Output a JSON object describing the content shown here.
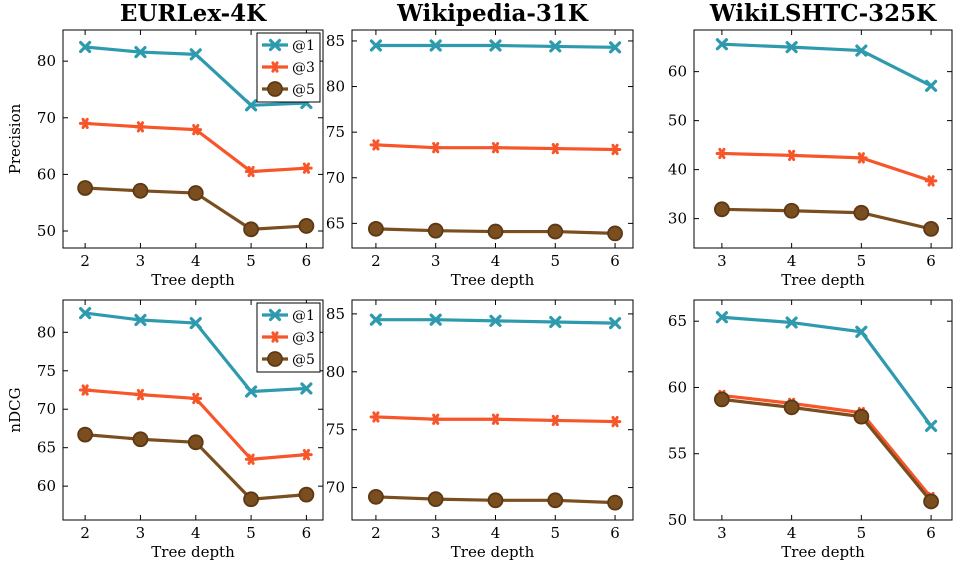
{
  "colors": {
    "@1": "#2e9aae",
    "@3": "#f7562a",
    "@5": "#7a4e1f",
    "@5_stroke": "#5c3814"
  },
  "chart_data": [
    {
      "type": "line",
      "row": 0,
      "col": 0,
      "title": "EURLex-4K",
      "xlabel": "Tree depth",
      "ylabel": "Precision",
      "x": [
        2,
        3,
        4,
        5,
        6
      ],
      "xlim": [
        1.6,
        6.3
      ],
      "ylim": [
        47,
        85.5
      ],
      "yticks": [
        50,
        60,
        70,
        80
      ],
      "legend": "top-right",
      "series": [
        {
          "name": "@1",
          "values": [
            82.5,
            81.6,
            81.2,
            72.2,
            72.6
          ]
        },
        {
          "name": "@3",
          "values": [
            69.0,
            68.4,
            67.9,
            60.5,
            61.1
          ]
        },
        {
          "name": "@5",
          "values": [
            57.6,
            57.1,
            56.7,
            50.3,
            50.9
          ]
        }
      ]
    },
    {
      "type": "line",
      "row": 0,
      "col": 1,
      "title": "Wikipedia-31K",
      "xlabel": "Tree depth",
      "ylabel": "",
      "x": [
        2,
        3,
        4,
        5,
        6
      ],
      "xlim": [
        1.6,
        6.3
      ],
      "ylim": [
        62.3,
        86.2
      ],
      "yticks": [
        65,
        70,
        75,
        80,
        85
      ],
      "legend": "none",
      "series": [
        {
          "name": "@1",
          "values": [
            84.5,
            84.5,
            84.5,
            84.4,
            84.3
          ]
        },
        {
          "name": "@3",
          "values": [
            73.6,
            73.3,
            73.3,
            73.2,
            73.1
          ]
        },
        {
          "name": "@5",
          "values": [
            64.4,
            64.2,
            64.1,
            64.1,
            63.9
          ]
        }
      ]
    },
    {
      "type": "line",
      "row": 0,
      "col": 2,
      "title": "WikiLSHTC-325K",
      "xlabel": "Tree depth",
      "ylabel": "",
      "x": [
        3,
        4,
        5,
        6
      ],
      "xlim": [
        2.6,
        6.3
      ],
      "ylim": [
        24,
        68.5
      ],
      "yticks": [
        30,
        40,
        50,
        60
      ],
      "legend": "none",
      "series": [
        {
          "name": "@1",
          "values": [
            65.6,
            65.0,
            64.3,
            57.1
          ]
        },
        {
          "name": "@3",
          "values": [
            43.3,
            42.9,
            42.4,
            37.7
          ]
        },
        {
          "name": "@5",
          "values": [
            31.9,
            31.6,
            31.2,
            27.9
          ]
        }
      ]
    },
    {
      "type": "line",
      "row": 1,
      "col": 0,
      "title": "",
      "xlabel": "Tree depth",
      "ylabel": "nDCG",
      "x": [
        2,
        3,
        4,
        5,
        6
      ],
      "xlim": [
        1.6,
        6.3
      ],
      "ylim": [
        55.6,
        84.2
      ],
      "yticks": [
        60,
        65,
        70,
        75,
        80
      ],
      "legend": "top-right",
      "series": [
        {
          "name": "@1",
          "values": [
            82.5,
            81.6,
            81.2,
            72.3,
            72.7
          ]
        },
        {
          "name": "@3",
          "values": [
            72.5,
            71.9,
            71.4,
            63.5,
            64.1
          ]
        },
        {
          "name": "@5",
          "values": [
            66.7,
            66.1,
            65.7,
            58.3,
            58.9
          ]
        }
      ]
    },
    {
      "type": "line",
      "row": 1,
      "col": 1,
      "title": "",
      "xlabel": "Tree depth",
      "ylabel": "",
      "x": [
        2,
        3,
        4,
        5,
        6
      ],
      "xlim": [
        1.6,
        6.3
      ],
      "ylim": [
        67.2,
        86.2
      ],
      "yticks": [
        70,
        75,
        80,
        85
      ],
      "legend": "none",
      "series": [
        {
          "name": "@1",
          "values": [
            84.5,
            84.5,
            84.4,
            84.3,
            84.2
          ]
        },
        {
          "name": "@3",
          "values": [
            76.1,
            75.9,
            75.9,
            75.8,
            75.7
          ]
        },
        {
          "name": "@5",
          "values": [
            69.2,
            69.0,
            68.9,
            68.9,
            68.7
          ]
        }
      ]
    },
    {
      "type": "line",
      "row": 1,
      "col": 2,
      "title": "",
      "xlabel": "Tree depth",
      "ylabel": "",
      "x": [
        3,
        4,
        5,
        6
      ],
      "xlim": [
        2.6,
        6.3
      ],
      "ylim": [
        50,
        66.6
      ],
      "yticks": [
        50,
        55,
        60,
        65
      ],
      "legend": "none",
      "series": [
        {
          "name": "@1",
          "values": [
            65.3,
            64.9,
            64.2,
            57.1
          ]
        },
        {
          "name": "@3",
          "values": [
            59.4,
            58.8,
            58.1,
            51.7
          ]
        },
        {
          "name": "@5",
          "values": [
            59.1,
            58.5,
            57.8,
            51.4
          ]
        }
      ]
    }
  ]
}
